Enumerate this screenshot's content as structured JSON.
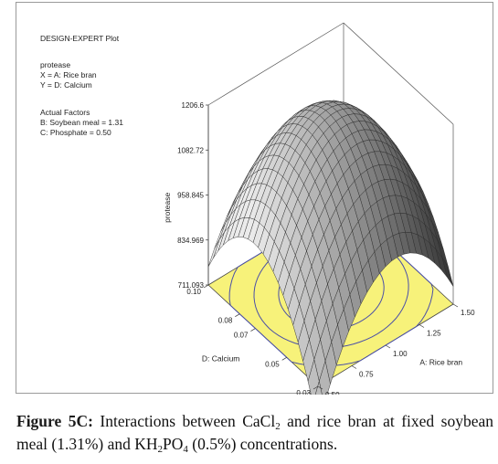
{
  "figure": {
    "plot_title": "DESIGN-EXPERT Plot",
    "response": "protease",
    "x_factor": "X = A: Rice bran",
    "y_factor": "Y = D: Calcium",
    "actual_factors_title": "Actual Factors",
    "actual_factor_1": "B: Soybean meal = 1.31",
    "actual_factor_2": "C: Phosphate = 0.50",
    "surface_color": "#8c8c8c",
    "contour_floor_color": "#f7f27a",
    "contour_line_color": "#4a4fa8"
  },
  "chart_data": {
    "type": "surface",
    "zlabel": "protease",
    "xlabel": "A: Rice bran",
    "ylabel": "D: Calcium",
    "z_ticks": [
      "711.093",
      "834.969",
      "958.845",
      "1082.72",
      "1206.6"
    ],
    "x_ticks": [
      "0.50",
      "0.75",
      "1.00",
      "1.25",
      "1.50"
    ],
    "y_ticks": [
      "0.03",
      "0.05",
      "0.07",
      "0.08",
      "0.10"
    ],
    "x_range": [
      0.5,
      1.5
    ],
    "y_range": [
      0.03,
      0.1
    ],
    "z_range": [
      711.093,
      1206.6
    ],
    "grid": true
  },
  "caption": {
    "label": "Figure 5C:",
    "text_1": " Interactions between CaCl",
    "sub_1": "2",
    "text_2": " and rice bran at fixed soybean meal (1.31%) and KH",
    "sub_2": "2",
    "text_3": "PO",
    "sub_3": "4",
    "text_4": " (0.5%) concentrations."
  }
}
